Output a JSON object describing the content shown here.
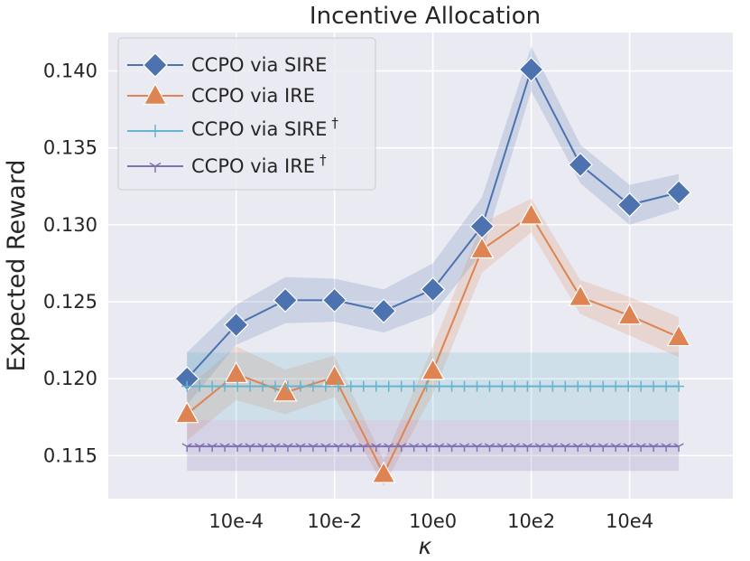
{
  "chart_data": {
    "type": "line",
    "title": "Incentive Allocation",
    "xlabel": "κ",
    "ylabel": "Expected Reward",
    "x_ticks": [
      {
        "label": "10e-4",
        "log_value": -4
      },
      {
        "label": "10e-2",
        "log_value": -2
      },
      {
        "label": "10e0",
        "log_value": 0
      },
      {
        "label": "10e2",
        "log_value": 2
      },
      {
        "label": "10e4",
        "log_value": 4
      }
    ],
    "y_ticks": [
      "0.115",
      "0.120",
      "0.125",
      "0.130",
      "0.135",
      "0.140"
    ],
    "xlim_log": [
      -6.6,
      6.1
    ],
    "ylim": [
      0.1122,
      0.1425
    ],
    "legend_position": "upper-left",
    "series": [
      {
        "name": "CCPO via SIRE",
        "marker": "diamond",
        "color": "#4c72b0",
        "x_log": [
          -5,
          -4,
          -3,
          -2,
          -1,
          0,
          1,
          2,
          3,
          4,
          5
        ],
        "values": [
          0.12,
          0.1235,
          0.1251,
          0.1251,
          0.1244,
          0.1258,
          0.1299,
          0.1401,
          0.1339,
          0.1313,
          0.1321
        ],
        "lower": [
          0.1183,
          0.1222,
          0.1236,
          0.1237,
          0.123,
          0.1242,
          0.1282,
          0.1387,
          0.1327,
          0.13,
          0.131
        ],
        "upper": [
          0.1217,
          0.1248,
          0.1266,
          0.1265,
          0.1258,
          0.1275,
          0.1318,
          0.1416,
          0.1352,
          0.1326,
          0.1333
        ]
      },
      {
        "name": "CCPO via IRE",
        "marker": "triangle",
        "color": "#dd8452",
        "x_log": [
          -5,
          -4,
          -3,
          -2,
          -1,
          0,
          1,
          2,
          3,
          4,
          5
        ],
        "values": [
          0.1177,
          0.1203,
          0.1191,
          0.1201,
          0.1138,
          0.1205,
          0.1284,
          0.1306,
          0.1253,
          0.1241,
          0.1227
        ],
        "lower": [
          0.116,
          0.1186,
          0.1177,
          0.1188,
          0.113,
          0.119,
          0.1269,
          0.1295,
          0.1242,
          0.1228,
          0.1214
        ],
        "upper": [
          0.1194,
          0.1221,
          0.1206,
          0.1215,
          0.1147,
          0.1221,
          0.1301,
          0.1317,
          0.1264,
          0.1253,
          0.124
        ]
      },
      {
        "name": "CCPO via SIRE",
        "dagger": "†",
        "marker": "plus",
        "color": "#64b5cd",
        "constant": 0.1195,
        "lower": 0.1173,
        "upper": 0.1217,
        "marker_count": 40
      },
      {
        "name": "CCPO via IRE",
        "dagger": "†",
        "marker": "tri_down",
        "color": "#8172b3",
        "constant": 0.1156,
        "lower": 0.114,
        "upper": 0.1173,
        "marker_count": 40
      }
    ]
  }
}
